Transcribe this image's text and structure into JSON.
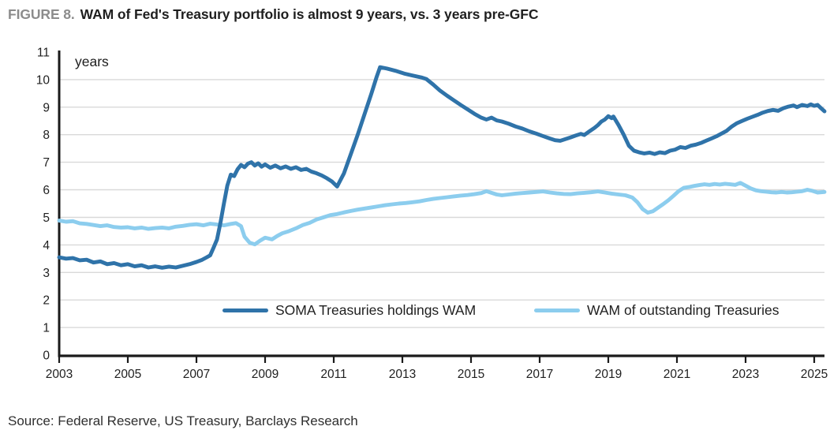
{
  "figure": {
    "label": "FIGURE 8.",
    "title": "WAM of Fed's Treasury portfolio is almost 9 years, vs. 3 years pre-GFC",
    "unit_annotation": "years",
    "source": "Source: Federal Reserve, US Treasury, Barclays Research"
  },
  "colors": {
    "soma_line": "#2f73a9",
    "outstanding_line": "#8ccdee",
    "grid": "#d9d9d9",
    "axis": "#1a1a1a",
    "text": "#1f1f1f",
    "figure_label_gray": "#8c8c8c"
  },
  "chart_data": {
    "type": "line",
    "title": "WAM of Fed's Treasury portfolio is almost 9 years, vs. 3 years pre-GFC",
    "xlabel": "",
    "ylabel": "years",
    "xlim": [
      2003,
      2025.3
    ],
    "ylim": [
      0,
      11
    ],
    "xticks": [
      2003,
      2005,
      2007,
      2009,
      2011,
      2013,
      2015,
      2017,
      2019,
      2021,
      2023,
      2025
    ],
    "yticks": [
      0,
      1,
      2,
      3,
      4,
      5,
      6,
      7,
      8,
      9,
      10,
      11
    ],
    "gridline_values": [
      1,
      2,
      3,
      4,
      5,
      6,
      7,
      8,
      9,
      10
    ],
    "grid": "horizontal",
    "legend_position": "bottom-inside",
    "series": [
      {
        "name": "SOMA Treasuries holdings WAM",
        "color": "#2f73a9",
        "points": [
          [
            2003.0,
            3.55
          ],
          [
            2003.2,
            3.5
          ],
          [
            2003.4,
            3.52
          ],
          [
            2003.6,
            3.44
          ],
          [
            2003.8,
            3.46
          ],
          [
            2004.0,
            3.36
          ],
          [
            2004.2,
            3.4
          ],
          [
            2004.4,
            3.3
          ],
          [
            2004.6,
            3.34
          ],
          [
            2004.8,
            3.26
          ],
          [
            2005.0,
            3.3
          ],
          [
            2005.2,
            3.22
          ],
          [
            2005.4,
            3.26
          ],
          [
            2005.6,
            3.18
          ],
          [
            2005.8,
            3.22
          ],
          [
            2006.0,
            3.17
          ],
          [
            2006.2,
            3.21
          ],
          [
            2006.4,
            3.18
          ],
          [
            2006.6,
            3.24
          ],
          [
            2006.8,
            3.3
          ],
          [
            2007.0,
            3.38
          ],
          [
            2007.15,
            3.45
          ],
          [
            2007.3,
            3.55
          ],
          [
            2007.4,
            3.62
          ],
          [
            2007.5,
            3.9
          ],
          [
            2007.6,
            4.2
          ],
          [
            2007.7,
            4.8
          ],
          [
            2007.8,
            5.5
          ],
          [
            2007.9,
            6.15
          ],
          [
            2008.0,
            6.55
          ],
          [
            2008.1,
            6.5
          ],
          [
            2008.2,
            6.75
          ],
          [
            2008.3,
            6.9
          ],
          [
            2008.4,
            6.82
          ],
          [
            2008.5,
            6.95
          ],
          [
            2008.6,
            7.0
          ],
          [
            2008.7,
            6.88
          ],
          [
            2008.8,
            6.96
          ],
          [
            2008.9,
            6.84
          ],
          [
            2009.0,
            6.92
          ],
          [
            2009.15,
            6.8
          ],
          [
            2009.3,
            6.88
          ],
          [
            2009.45,
            6.78
          ],
          [
            2009.6,
            6.85
          ],
          [
            2009.75,
            6.76
          ],
          [
            2009.9,
            6.82
          ],
          [
            2010.05,
            6.72
          ],
          [
            2010.2,
            6.76
          ],
          [
            2010.35,
            6.66
          ],
          [
            2010.5,
            6.6
          ],
          [
            2010.65,
            6.52
          ],
          [
            2010.8,
            6.42
          ],
          [
            2010.95,
            6.3
          ],
          [
            2011.1,
            6.12
          ],
          [
            2011.3,
            6.6
          ],
          [
            2011.5,
            7.3
          ],
          [
            2011.7,
            8.0
          ],
          [
            2011.9,
            8.75
          ],
          [
            2012.1,
            9.5
          ],
          [
            2012.25,
            10.1
          ],
          [
            2012.35,
            10.45
          ],
          [
            2012.55,
            10.4
          ],
          [
            2012.8,
            10.32
          ],
          [
            2013.05,
            10.22
          ],
          [
            2013.3,
            10.15
          ],
          [
            2013.55,
            10.08
          ],
          [
            2013.7,
            10.02
          ],
          [
            2013.9,
            9.82
          ],
          [
            2014.1,
            9.6
          ],
          [
            2014.3,
            9.42
          ],
          [
            2014.5,
            9.25
          ],
          [
            2014.7,
            9.08
          ],
          [
            2014.9,
            8.92
          ],
          [
            2015.1,
            8.76
          ],
          [
            2015.3,
            8.62
          ],
          [
            2015.45,
            8.55
          ],
          [
            2015.6,
            8.62
          ],
          [
            2015.75,
            8.52
          ],
          [
            2015.9,
            8.48
          ],
          [
            2016.1,
            8.4
          ],
          [
            2016.3,
            8.3
          ],
          [
            2016.5,
            8.22
          ],
          [
            2016.7,
            8.12
          ],
          [
            2016.9,
            8.04
          ],
          [
            2017.1,
            7.95
          ],
          [
            2017.3,
            7.86
          ],
          [
            2017.45,
            7.8
          ],
          [
            2017.6,
            7.78
          ],
          [
            2017.75,
            7.84
          ],
          [
            2017.9,
            7.9
          ],
          [
            2018.05,
            7.97
          ],
          [
            2018.2,
            8.03
          ],
          [
            2018.3,
            7.99
          ],
          [
            2018.45,
            8.12
          ],
          [
            2018.6,
            8.25
          ],
          [
            2018.7,
            8.35
          ],
          [
            2018.8,
            8.48
          ],
          [
            2018.9,
            8.55
          ],
          [
            2019.0,
            8.67
          ],
          [
            2019.1,
            8.6
          ],
          [
            2019.15,
            8.66
          ],
          [
            2019.3,
            8.35
          ],
          [
            2019.45,
            8.0
          ],
          [
            2019.6,
            7.6
          ],
          [
            2019.75,
            7.42
          ],
          [
            2019.9,
            7.36
          ],
          [
            2020.05,
            7.32
          ],
          [
            2020.2,
            7.35
          ],
          [
            2020.35,
            7.3
          ],
          [
            2020.5,
            7.36
          ],
          [
            2020.65,
            7.33
          ],
          [
            2020.8,
            7.42
          ],
          [
            2020.95,
            7.46
          ],
          [
            2021.1,
            7.55
          ],
          [
            2021.25,
            7.52
          ],
          [
            2021.4,
            7.6
          ],
          [
            2021.55,
            7.64
          ],
          [
            2021.7,
            7.7
          ],
          [
            2021.85,
            7.78
          ],
          [
            2022.0,
            7.86
          ],
          [
            2022.15,
            7.94
          ],
          [
            2022.3,
            8.04
          ],
          [
            2022.45,
            8.14
          ],
          [
            2022.6,
            8.3
          ],
          [
            2022.75,
            8.42
          ],
          [
            2022.9,
            8.5
          ],
          [
            2023.05,
            8.58
          ],
          [
            2023.2,
            8.65
          ],
          [
            2023.35,
            8.72
          ],
          [
            2023.5,
            8.8
          ],
          [
            2023.65,
            8.86
          ],
          [
            2023.8,
            8.9
          ],
          [
            2023.95,
            8.87
          ],
          [
            2024.1,
            8.96
          ],
          [
            2024.25,
            9.02
          ],
          [
            2024.4,
            9.06
          ],
          [
            2024.5,
            9.0
          ],
          [
            2024.65,
            9.08
          ],
          [
            2024.8,
            9.04
          ],
          [
            2024.9,
            9.1
          ],
          [
            2025.0,
            9.05
          ],
          [
            2025.1,
            9.08
          ],
          [
            2025.2,
            8.96
          ],
          [
            2025.3,
            8.85
          ]
        ]
      },
      {
        "name": "WAM of outstanding Treasuries",
        "color": "#8ccdee",
        "points": [
          [
            2003.0,
            4.88
          ],
          [
            2003.2,
            4.84
          ],
          [
            2003.4,
            4.86
          ],
          [
            2003.6,
            4.78
          ],
          [
            2003.8,
            4.76
          ],
          [
            2004.0,
            4.72
          ],
          [
            2004.2,
            4.68
          ],
          [
            2004.4,
            4.71
          ],
          [
            2004.6,
            4.65
          ],
          [
            2004.8,
            4.63
          ],
          [
            2005.0,
            4.64
          ],
          [
            2005.2,
            4.6
          ],
          [
            2005.4,
            4.63
          ],
          [
            2005.6,
            4.58
          ],
          [
            2005.8,
            4.61
          ],
          [
            2006.0,
            4.63
          ],
          [
            2006.2,
            4.6
          ],
          [
            2006.4,
            4.66
          ],
          [
            2006.6,
            4.69
          ],
          [
            2006.8,
            4.73
          ],
          [
            2007.0,
            4.75
          ],
          [
            2007.2,
            4.71
          ],
          [
            2007.4,
            4.77
          ],
          [
            2007.6,
            4.74
          ],
          [
            2007.8,
            4.71
          ],
          [
            2008.0,
            4.76
          ],
          [
            2008.15,
            4.79
          ],
          [
            2008.3,
            4.68
          ],
          [
            2008.4,
            4.3
          ],
          [
            2008.55,
            4.08
          ],
          [
            2008.7,
            4.02
          ],
          [
            2008.85,
            4.15
          ],
          [
            2009.0,
            4.26
          ],
          [
            2009.2,
            4.2
          ],
          [
            2009.35,
            4.32
          ],
          [
            2009.5,
            4.42
          ],
          [
            2009.7,
            4.5
          ],
          [
            2009.9,
            4.6
          ],
          [
            2010.1,
            4.72
          ],
          [
            2010.3,
            4.8
          ],
          [
            2010.5,
            4.92
          ],
          [
            2010.7,
            5.0
          ],
          [
            2010.9,
            5.08
          ],
          [
            2011.1,
            5.12
          ],
          [
            2011.3,
            5.18
          ],
          [
            2011.5,
            5.23
          ],
          [
            2011.7,
            5.28
          ],
          [
            2011.9,
            5.32
          ],
          [
            2012.1,
            5.36
          ],
          [
            2012.3,
            5.4
          ],
          [
            2012.5,
            5.44
          ],
          [
            2012.7,
            5.47
          ],
          [
            2012.9,
            5.5
          ],
          [
            2013.1,
            5.52
          ],
          [
            2013.3,
            5.55
          ],
          [
            2013.5,
            5.58
          ],
          [
            2013.7,
            5.63
          ],
          [
            2013.9,
            5.67
          ],
          [
            2014.1,
            5.7
          ],
          [
            2014.3,
            5.73
          ],
          [
            2014.5,
            5.76
          ],
          [
            2014.7,
            5.79
          ],
          [
            2014.9,
            5.81
          ],
          [
            2015.1,
            5.84
          ],
          [
            2015.3,
            5.88
          ],
          [
            2015.45,
            5.95
          ],
          [
            2015.6,
            5.89
          ],
          [
            2015.75,
            5.83
          ],
          [
            2015.9,
            5.8
          ],
          [
            2016.1,
            5.83
          ],
          [
            2016.3,
            5.86
          ],
          [
            2016.5,
            5.88
          ],
          [
            2016.7,
            5.9
          ],
          [
            2016.9,
            5.92
          ],
          [
            2017.1,
            5.94
          ],
          [
            2017.3,
            5.9
          ],
          [
            2017.5,
            5.87
          ],
          [
            2017.7,
            5.85
          ],
          [
            2017.9,
            5.84
          ],
          [
            2018.1,
            5.87
          ],
          [
            2018.3,
            5.89
          ],
          [
            2018.5,
            5.91
          ],
          [
            2018.7,
            5.94
          ],
          [
            2018.9,
            5.9
          ],
          [
            2019.1,
            5.86
          ],
          [
            2019.3,
            5.83
          ],
          [
            2019.5,
            5.8
          ],
          [
            2019.7,
            5.72
          ],
          [
            2019.85,
            5.55
          ],
          [
            2020.0,
            5.3
          ],
          [
            2020.15,
            5.17
          ],
          [
            2020.3,
            5.22
          ],
          [
            2020.45,
            5.35
          ],
          [
            2020.6,
            5.48
          ],
          [
            2020.75,
            5.62
          ],
          [
            2020.9,
            5.78
          ],
          [
            2021.05,
            5.95
          ],
          [
            2021.2,
            6.07
          ],
          [
            2021.35,
            6.1
          ],
          [
            2021.5,
            6.14
          ],
          [
            2021.65,
            6.17
          ],
          [
            2021.8,
            6.2
          ],
          [
            2021.95,
            6.18
          ],
          [
            2022.1,
            6.21
          ],
          [
            2022.25,
            6.19
          ],
          [
            2022.4,
            6.22
          ],
          [
            2022.55,
            6.2
          ],
          [
            2022.7,
            6.18
          ],
          [
            2022.85,
            6.25
          ],
          [
            2023.0,
            6.15
          ],
          [
            2023.15,
            6.05
          ],
          [
            2023.3,
            5.98
          ],
          [
            2023.45,
            5.95
          ],
          [
            2023.6,
            5.93
          ],
          [
            2023.75,
            5.91
          ],
          [
            2023.9,
            5.9
          ],
          [
            2024.05,
            5.92
          ],
          [
            2024.2,
            5.9
          ],
          [
            2024.35,
            5.91
          ],
          [
            2024.5,
            5.93
          ],
          [
            2024.65,
            5.95
          ],
          [
            2024.8,
            6.0
          ],
          [
            2024.95,
            5.96
          ],
          [
            2025.1,
            5.9
          ],
          [
            2025.3,
            5.92
          ]
        ]
      }
    ]
  }
}
